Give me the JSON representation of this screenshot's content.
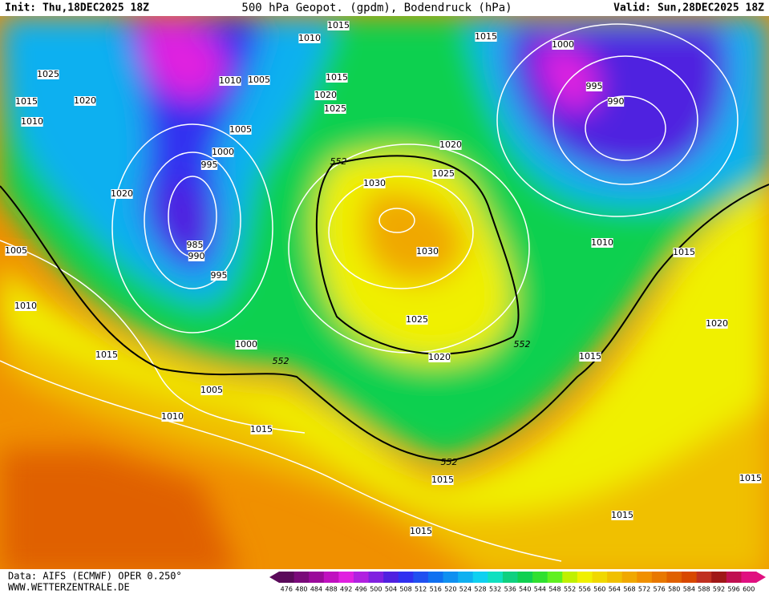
{
  "header": {
    "init": "Init: Thu,18DEC2025 18Z",
    "title": "500 hPa Geopot. (gpdm), Bodendruck (hPa)",
    "valid": "Valid: Sun,28DEC2025 18Z"
  },
  "footer": {
    "data": "Data: AIFS (ECMWF) OPER 0.250°",
    "url": "WWW.WETTERZENTRALE.DE"
  },
  "colorbar": {
    "values": [
      476,
      480,
      484,
      488,
      492,
      496,
      500,
      504,
      508,
      512,
      516,
      520,
      524,
      528,
      532,
      536,
      540,
      544,
      548,
      552,
      556,
      560,
      564,
      568,
      572,
      576,
      580,
      584,
      588,
      592,
      596,
      600
    ],
    "colors": [
      "#5a0a5a",
      "#7a0a7a",
      "#9a0a9a",
      "#c010c0",
      "#e020e0",
      "#b020e0",
      "#8020e0",
      "#5020e0",
      "#3030f0",
      "#2050f0",
      "#1070f0",
      "#1090f0",
      "#10b0f0",
      "#10d0f0",
      "#10e0c0",
      "#10d080",
      "#10d050",
      "#30e030",
      "#60f020",
      "#c0f000",
      "#f0f000",
      "#f0d800",
      "#f0c000",
      "#f0a800",
      "#f09000",
      "#e87800",
      "#e06000",
      "#d84800",
      "#c03020",
      "#a01818",
      "#c01050",
      "#e01080"
    ]
  },
  "isobar_labels": [
    "1015",
    "1010",
    "1015",
    "1000",
    "1025",
    "1010",
    "1005",
    "1015",
    "1015",
    "1020",
    "1020",
    "995",
    "990",
    "1025",
    "1010",
    "1005",
    "1000",
    "995",
    "1020",
    "552",
    "1025",
    "1030",
    "1020",
    "1005",
    "985",
    "990",
    "1030",
    "995",
    "1010",
    "1015",
    "1010",
    "1025",
    "1020",
    "1000",
    "1015",
    "552",
    "1020",
    "552",
    "1015",
    "1005",
    "1010",
    "1015",
    "552",
    "1015",
    "1015",
    "1015",
    "1015"
  ]
}
